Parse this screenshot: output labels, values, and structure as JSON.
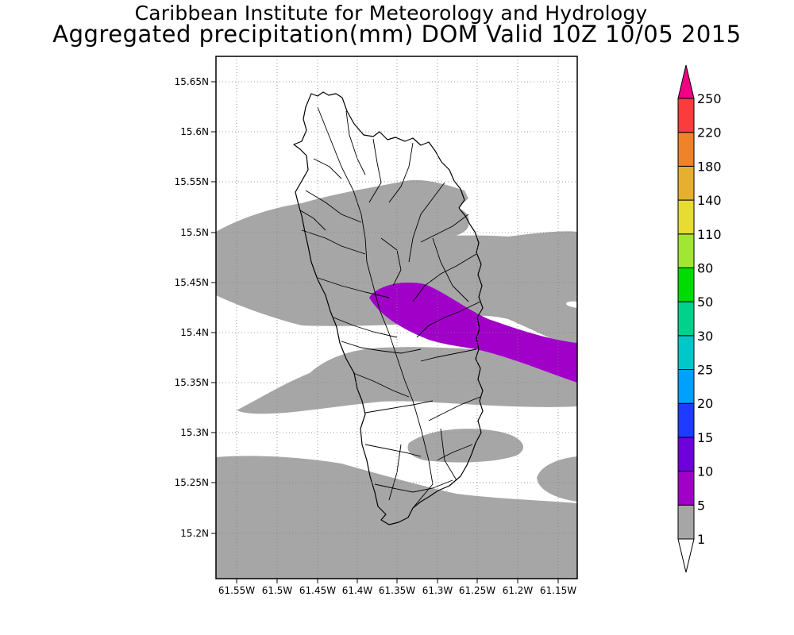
{
  "header": {
    "title_line1": "Caribbean Institute for Meteorology and Hydrology",
    "title_line2": "Aggregated precipitation(mm) DOM Valid 10Z 10/05 2015"
  },
  "map": {
    "lon_labels": [
      "61.55W",
      "61.5W",
      "61.45W",
      "61.4W",
      "61.35W",
      "61.3W",
      "61.25W",
      "61.2W",
      "61.15W"
    ],
    "lat_labels": [
      "15.65N",
      "15.6N",
      "15.55N",
      "15.5N",
      "15.45N",
      "15.4N",
      "15.35N",
      "15.3N",
      "15.25N",
      "15.2N"
    ],
    "fill_colors": {
      "1-5": "#a6a6a6",
      "5-10": "#a000c8",
      "land_outline": "#000000"
    }
  },
  "colorbar": {
    "levels": [
      "1",
      "5",
      "10",
      "15",
      "20",
      "25",
      "30",
      "50",
      "80",
      "110",
      "140",
      "180",
      "220",
      "250"
    ],
    "colors": [
      "#a6a6a6",
      "#a000c8",
      "#6e00dc",
      "#1e3cff",
      "#00a0ff",
      "#00c8c8",
      "#00d28c",
      "#00dc00",
      "#a0e632",
      "#e6dc32",
      "#e6af2d",
      "#f08228",
      "#fa3c3c",
      "#f00082"
    ],
    "under_color": "#ffffff",
    "over_color": "#f00082"
  }
}
